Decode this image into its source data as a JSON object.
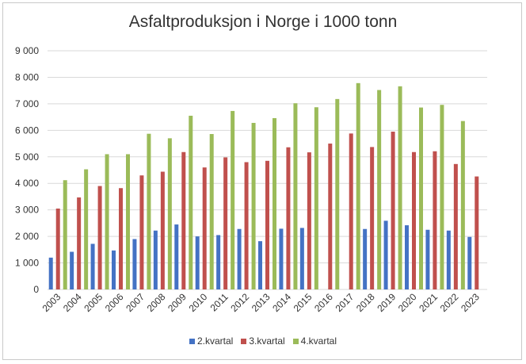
{
  "chart_data": {
    "type": "bar",
    "title": "Asfaltproduksjon i Norge i 1000 tonn",
    "xlabel": "",
    "ylabel": "",
    "ylim": [
      0,
      9000
    ],
    "yticks": [
      0,
      1000,
      2000,
      3000,
      4000,
      5000,
      6000,
      7000,
      8000,
      9000
    ],
    "ytick_labels": [
      "0",
      "1 000",
      "2 000",
      "3 000",
      "4 000",
      "5 000",
      "6 000",
      "7 000",
      "8 000",
      "9 000"
    ],
    "grid": true,
    "legend_position": "bottom",
    "categories": [
      "2003",
      "2004",
      "2005",
      "2006",
      "2007",
      "2008",
      "2009",
      "2010",
      "2011",
      "2012",
      "2013",
      "2014",
      "2015",
      "2016",
      "2017",
      "2018",
      "2019",
      "2020",
      "2021",
      "2022",
      "2023"
    ],
    "series": [
      {
        "name": "2.kvartal",
        "color": "#4472C4",
        "values": [
          1200,
          1420,
          1720,
          1470,
          1900,
          2220,
          2450,
          2000,
          2050,
          2280,
          1820,
          2290,
          2320,
          null,
          null,
          2280,
          2590,
          2420,
          2250,
          2220,
          1980
        ]
      },
      {
        "name": "3.kvartal",
        "color": "#C0504D",
        "values": [
          3050,
          3470,
          3900,
          3820,
          4300,
          4440,
          5180,
          4600,
          4980,
          4800,
          4850,
          5360,
          5170,
          5500,
          5880,
          5370,
          5950,
          5180,
          5210,
          4730,
          4260
        ]
      },
      {
        "name": "4.kvartal",
        "color": "#9BBB59",
        "values": [
          4120,
          4530,
          5100,
          5100,
          5870,
          5700,
          6550,
          5860,
          6730,
          6280,
          6460,
          7020,
          6870,
          7180,
          7780,
          7520,
          7660,
          6860,
          6960,
          6350,
          null
        ]
      }
    ]
  }
}
